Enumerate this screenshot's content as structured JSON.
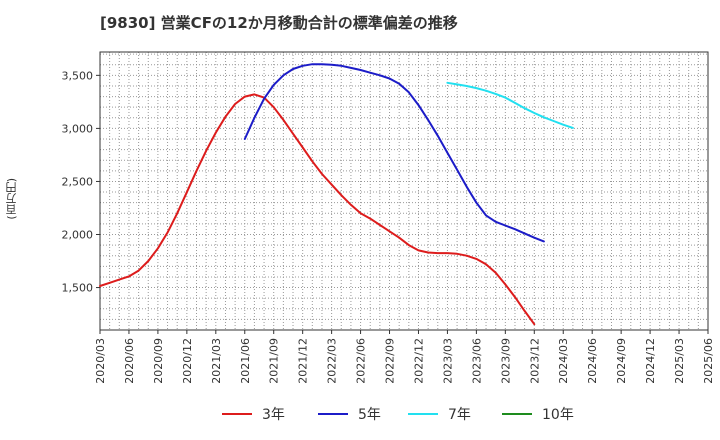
{
  "chart_data": {
    "type": "line",
    "title": "[9830]  営業CFの12か月移動合計の標準偏差の推移",
    "ylabel": "(百万円)",
    "xlabel": "",
    "x_ticks": [
      "2020/03",
      "2020/06",
      "2020/09",
      "2020/12",
      "2021/03",
      "2021/06",
      "2021/09",
      "2021/12",
      "2022/03",
      "2022/06",
      "2022/09",
      "2022/12",
      "2023/03",
      "2023/06",
      "2023/09",
      "2023/12",
      "2024/03",
      "2024/06",
      "2024/09",
      "2024/12",
      "2025/03",
      "2025/06"
    ],
    "y_ticks": [
      1500,
      2000,
      2500,
      3000,
      3500
    ],
    "y_tick_labels": [
      "1,500",
      "2,000",
      "2,500",
      "3,000",
      "3,500"
    ],
    "ylim": [
      1100,
      3720
    ],
    "grid": true,
    "legend_position": "bottom",
    "series": [
      {
        "name": "3年",
        "color": "#dd1c1c",
        "start_index": 0,
        "values": [
          1515,
          1545,
          1575,
          1605,
          1660,
          1750,
          1870,
          2020,
          2200,
          2400,
          2600,
          2790,
          2960,
          3110,
          3230,
          3300,
          3320,
          3290,
          3200,
          3080,
          2950,
          2820,
          2690,
          2570,
          2470,
          2370,
          2280,
          2200,
          2150,
          2090,
          2030,
          1970,
          1900,
          1850,
          1830,
          1825,
          1825,
          1818,
          1800,
          1770,
          1720,
          1640,
          1530,
          1410,
          1280,
          1155
        ]
      },
      {
        "name": "5年",
        "color": "#1c1cc8",
        "start_index": 15,
        "values": [
          2900,
          3100,
          3280,
          3410,
          3500,
          3560,
          3590,
          3605,
          3605,
          3600,
          3590,
          3570,
          3550,
          3525,
          3500,
          3470,
          3420,
          3340,
          3220,
          3080,
          2930,
          2770,
          2610,
          2450,
          2300,
          2180,
          2120,
          2085,
          2050,
          2010,
          1970,
          1935
        ]
      },
      {
        "name": "7年",
        "color": "#22e0f0",
        "start_index": 36,
        "values": [
          3430,
          3415,
          3400,
          3380,
          3355,
          3325,
          3290,
          3240,
          3190,
          3145,
          3105,
          3070,
          3035,
          3005
        ]
      },
      {
        "name": "10年",
        "color": "#1e8c1e",
        "start_index": 0,
        "values": []
      }
    ]
  }
}
